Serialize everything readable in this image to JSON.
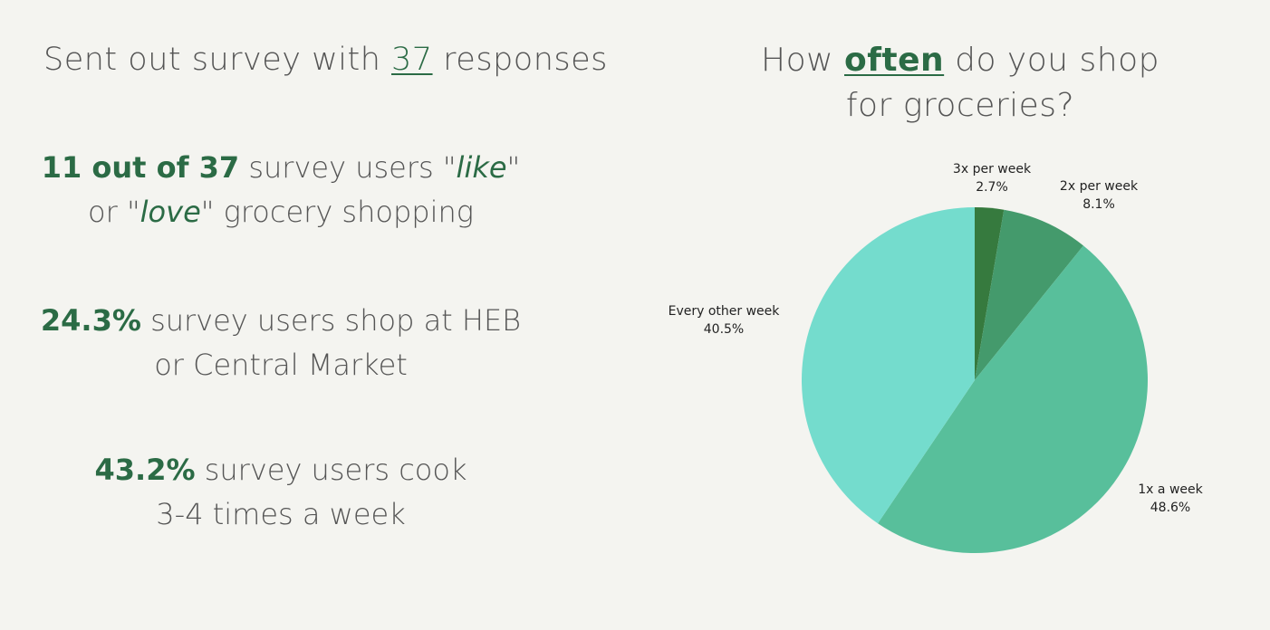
{
  "summary": {
    "headline_pre": "Sent out survey with ",
    "headline_num": "37",
    "headline_post": " responses",
    "stat1": {
      "bold": "11 out of 37",
      "text1": " survey users \"",
      "like": "like",
      "text2": "\"",
      "text3": "or \"",
      "love": "love",
      "text4": "\" grocery shopping"
    },
    "stat2": {
      "bold": "24.3%",
      "text1": " survey users shop at HEB",
      "text2": "or Central Market"
    },
    "stat3": {
      "bold": "43.2%",
      "text1": " survey users cook",
      "text2": "3-4 times a week"
    }
  },
  "chart_title": {
    "pre": "How ",
    "keyword": "often",
    "post": " do you shop",
    "line2": "for groceries?"
  },
  "chart_data": {
    "type": "pie",
    "title": "How often do you shop for groceries?",
    "slices": [
      {
        "label": "3x per week",
        "percent_label": "2.7%",
        "value": 2.7,
        "color": "#367a3e"
      },
      {
        "label": "2x per week",
        "percent_label": "8.1%",
        "value": 8.1,
        "color": "#449a6c"
      },
      {
        "label": "1x a week",
        "percent_label": "48.6%",
        "value": 48.6,
        "color": "#58bf9b"
      },
      {
        "label": "Every other week",
        "percent_label": "40.5%",
        "value": 40.5,
        "color": "#74dccd"
      }
    ]
  }
}
